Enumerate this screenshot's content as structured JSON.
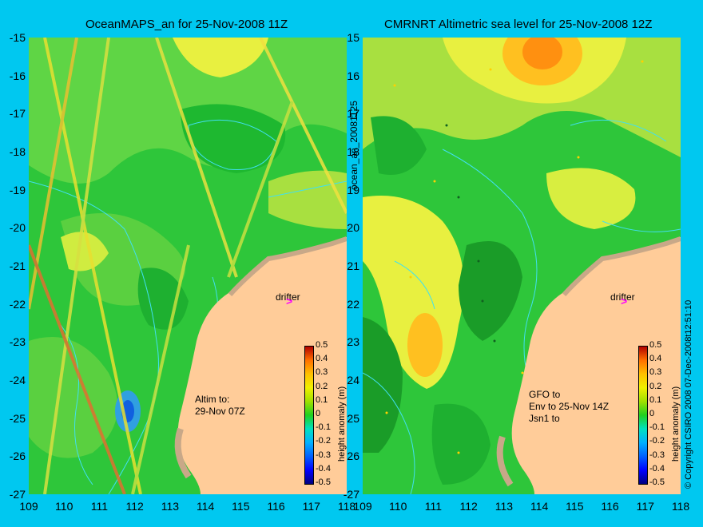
{
  "left_panel": {
    "title": "OceanMAPS_an for 25-Nov-2008 11Z",
    "side_label": "ocean_an_20081125",
    "altim_note": "Altim to:\n29-Nov 07Z",
    "drifter_label": "drifter",
    "drifter_symbol": ">"
  },
  "right_panel": {
    "title": "CMRNRT Altimetric sea level  for 25-Nov-2008 12Z",
    "sat_note": "GFO to\nEnv to 25-Nov 14Z\nJsn1 to",
    "drifter_label": "drifter",
    "drifter_symbol": ">"
  },
  "axes": {
    "y_ticks": [
      "-15",
      "-16",
      "-17",
      "-18",
      "-19",
      "-20",
      "-21",
      "-22",
      "-23",
      "-24",
      "-25",
      "-26",
      "-27"
    ],
    "x_ticks_left": [
      "109",
      "110",
      "111",
      "112",
      "113",
      "114",
      "115",
      "116",
      "117",
      "118"
    ],
    "x_ticks_right": [
      "109",
      "110",
      "111",
      "112",
      "113",
      "114",
      "115",
      "116",
      "117",
      "118"
    ]
  },
  "colorbar": {
    "ticks": [
      "0.5",
      "0.4",
      "0.3",
      "0.2",
      "0.1",
      "0",
      "-0.1",
      "-0.2",
      "-0.3",
      "-0.4",
      "-0.5"
    ],
    "label": "height anomaly (m)"
  },
  "copyright": "© Copyright CSIRO 2008   07-Dec-2008t12:51:10",
  "colors": {
    "background": "#00c8f0",
    "land": "#ffcc99",
    "coast_shelf": "#c8a888",
    "field_green": "#2ec63a",
    "field_yellow": "#e8f040",
    "field_orange": "#ffa020",
    "field_blue": "#1060e0",
    "contour": "#40e0f0",
    "drifter": "#ff00ff"
  }
}
